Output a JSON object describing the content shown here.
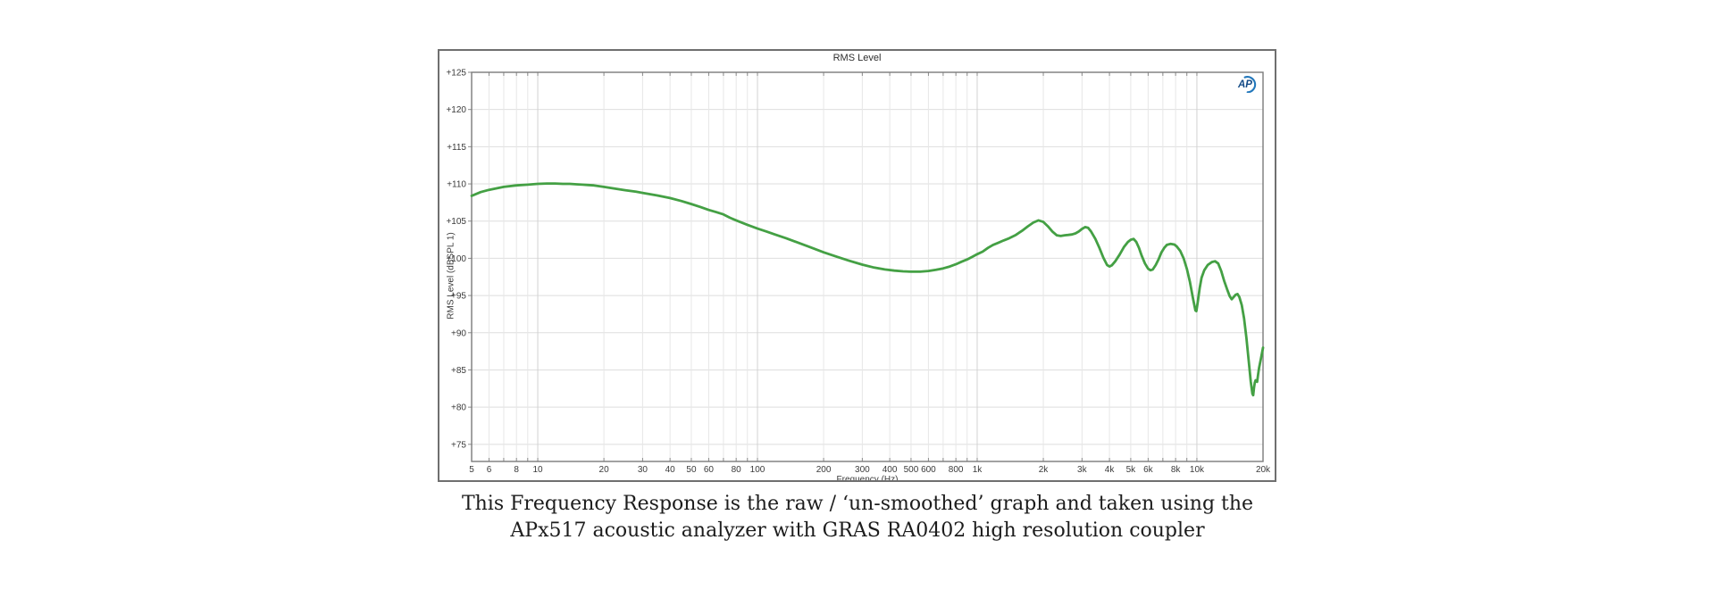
{
  "chart": {
    "title": "RMS Level",
    "y_axis_title": "RMS Level (dBSPL 1)",
    "x_axis_title": "Frequency (Hz)",
    "logo_text": "AP",
    "colors": {
      "trace": "#44a044",
      "grid_minor": "#e7e7e7",
      "grid_decade": "#d2d2d2",
      "grid_horizontal": "#dedede",
      "plot_border": "#7a7a7a",
      "outer_border": "#6f6f6f",
      "tick_text": "#3a3a3a",
      "tick_mark": "#8a8a8a",
      "logo_blue": "#2277bb",
      "logo_text_blue": "#134a86"
    }
  },
  "chart_data": {
    "type": "line",
    "title": "RMS Level",
    "xlabel": "Frequency (Hz)",
    "ylabel": "RMS Level (dBSPL 1)",
    "x_scale": "log",
    "xlim": [
      5,
      20000
    ],
    "ylim": [
      72.7,
      125
    ],
    "grid": true,
    "y_ticks": [
      125,
      120,
      115,
      110,
      105,
      100,
      95,
      90,
      85,
      80,
      75
    ],
    "y_tick_labels": [
      "+125",
      "+120",
      "+115",
      "+110",
      "+105",
      "+100",
      "+95",
      "+90",
      "+85",
      "+80",
      "+75"
    ],
    "x_gridlines": [
      6,
      7,
      8,
      9,
      10,
      20,
      30,
      40,
      50,
      60,
      70,
      80,
      90,
      100,
      200,
      300,
      400,
      500,
      600,
      700,
      800,
      900,
      1000,
      2000,
      3000,
      4000,
      5000,
      6000,
      7000,
      8000,
      9000,
      10000,
      20000
    ],
    "x_decades": [
      10,
      100,
      1000,
      10000
    ],
    "x_ticks": [
      {
        "f": 5,
        "label": "5"
      },
      {
        "f": 6,
        "label": "6"
      },
      {
        "f": 8,
        "label": "8"
      },
      {
        "f": 10,
        "label": "10"
      },
      {
        "f": 20,
        "label": "20"
      },
      {
        "f": 30,
        "label": "30"
      },
      {
        "f": 40,
        "label": "40"
      },
      {
        "f": 50,
        "label": "50"
      },
      {
        "f": 60,
        "label": "60"
      },
      {
        "f": 80,
        "label": "80"
      },
      {
        "f": 100,
        "label": "100"
      },
      {
        "f": 200,
        "label": "200"
      },
      {
        "f": 300,
        "label": "300"
      },
      {
        "f": 400,
        "label": "400"
      },
      {
        "f": 500,
        "label": "500"
      },
      {
        "f": 600,
        "label": "600"
      },
      {
        "f": 800,
        "label": "800"
      },
      {
        "f": 1000,
        "label": "1k"
      },
      {
        "f": 2000,
        "label": "2k"
      },
      {
        "f": 3000,
        "label": "3k"
      },
      {
        "f": 4000,
        "label": "4k"
      },
      {
        "f": 5000,
        "label": "5k"
      },
      {
        "f": 6000,
        "label": "6k"
      },
      {
        "f": 8000,
        "label": "8k"
      },
      {
        "f": 10000,
        "label": "10k"
      },
      {
        "f": 20000,
        "label": "20k"
      }
    ],
    "series": [
      {
        "name": "RMS Level",
        "color": "#44a044",
        "points": [
          [
            5,
            108.4
          ],
          [
            5.5,
            108.9
          ],
          [
            6,
            109.2
          ],
          [
            7,
            109.6
          ],
          [
            8,
            109.8
          ],
          [
            9,
            109.9
          ],
          [
            10,
            110.0
          ],
          [
            11,
            110.05
          ],
          [
            12,
            110.05
          ],
          [
            13,
            110.0
          ],
          [
            14,
            110.0
          ],
          [
            15,
            109.95
          ],
          [
            16,
            109.9
          ],
          [
            17,
            109.85
          ],
          [
            18,
            109.8
          ],
          [
            20,
            109.6
          ],
          [
            22,
            109.4
          ],
          [
            25,
            109.15
          ],
          [
            28,
            108.95
          ],
          [
            30,
            108.8
          ],
          [
            35,
            108.45
          ],
          [
            40,
            108.1
          ],
          [
            45,
            107.7
          ],
          [
            50,
            107.3
          ],
          [
            55,
            106.9
          ],
          [
            60,
            106.5
          ],
          [
            65,
            106.2
          ],
          [
            70,
            105.9
          ],
          [
            75,
            105.45
          ],
          [
            80,
            105.1
          ],
          [
            90,
            104.5
          ],
          [
            100,
            104.0
          ],
          [
            110,
            103.6
          ],
          [
            120,
            103.2
          ],
          [
            135,
            102.7
          ],
          [
            150,
            102.2
          ],
          [
            170,
            101.6
          ],
          [
            200,
            100.8
          ],
          [
            230,
            100.2
          ],
          [
            260,
            99.7
          ],
          [
            300,
            99.15
          ],
          [
            340,
            98.75
          ],
          [
            380,
            98.5
          ],
          [
            420,
            98.35
          ],
          [
            460,
            98.25
          ],
          [
            500,
            98.2
          ],
          [
            550,
            98.2
          ],
          [
            600,
            98.3
          ],
          [
            650,
            98.45
          ],
          [
            700,
            98.65
          ],
          [
            750,
            98.9
          ],
          [
            800,
            99.2
          ],
          [
            850,
            99.55
          ],
          [
            900,
            99.85
          ],
          [
            950,
            100.2
          ],
          [
            1000,
            100.55
          ],
          [
            1060,
            100.9
          ],
          [
            1120,
            101.4
          ],
          [
            1180,
            101.8
          ],
          [
            1250,
            102.1
          ],
          [
            1320,
            102.4
          ],
          [
            1400,
            102.7
          ],
          [
            1500,
            103.15
          ],
          [
            1600,
            103.7
          ],
          [
            1700,
            104.3
          ],
          [
            1800,
            104.8
          ],
          [
            1900,
            105.1
          ],
          [
            2000,
            104.9
          ],
          [
            2100,
            104.3
          ],
          [
            2200,
            103.6
          ],
          [
            2300,
            103.1
          ],
          [
            2400,
            103.0
          ],
          [
            2500,
            103.1
          ],
          [
            2600,
            103.15
          ],
          [
            2700,
            103.2
          ],
          [
            2800,
            103.35
          ],
          [
            2900,
            103.6
          ],
          [
            3000,
            103.95
          ],
          [
            3100,
            104.2
          ],
          [
            3200,
            104.1
          ],
          [
            3300,
            103.6
          ],
          [
            3450,
            102.6
          ],
          [
            3600,
            101.4
          ],
          [
            3750,
            100.1
          ],
          [
            3900,
            99.1
          ],
          [
            4000,
            98.9
          ],
          [
            4100,
            99.05
          ],
          [
            4250,
            99.6
          ],
          [
            4450,
            100.5
          ],
          [
            4650,
            101.5
          ],
          [
            4850,
            102.2
          ],
          [
            5000,
            102.5
          ],
          [
            5150,
            102.6
          ],
          [
            5300,
            102.2
          ],
          [
            5450,
            101.4
          ],
          [
            5600,
            100.4
          ],
          [
            5800,
            99.3
          ],
          [
            6000,
            98.6
          ],
          [
            6150,
            98.4
          ],
          [
            6300,
            98.5
          ],
          [
            6500,
            99.1
          ],
          [
            6700,
            99.9
          ],
          [
            6900,
            100.8
          ],
          [
            7100,
            101.4
          ],
          [
            7300,
            101.8
          ],
          [
            7600,
            101.95
          ],
          [
            7900,
            101.85
          ],
          [
            8100,
            101.6
          ],
          [
            8400,
            101.0
          ],
          [
            8700,
            100.0
          ],
          [
            9000,
            98.6
          ],
          [
            9300,
            96.8
          ],
          [
            9600,
            94.6
          ],
          [
            9850,
            93.0
          ],
          [
            9950,
            92.9
          ],
          [
            10100,
            94.2
          ],
          [
            10300,
            96.0
          ],
          [
            10500,
            97.4
          ],
          [
            10800,
            98.4
          ],
          [
            11200,
            99.1
          ],
          [
            11700,
            99.5
          ],
          [
            12100,
            99.6
          ],
          [
            12500,
            99.3
          ],
          [
            12900,
            98.3
          ],
          [
            13300,
            97.0
          ],
          [
            13700,
            95.9
          ],
          [
            14100,
            94.9
          ],
          [
            14400,
            94.5
          ],
          [
            14700,
            94.8
          ],
          [
            15000,
            95.1
          ],
          [
            15300,
            95.2
          ],
          [
            15600,
            94.8
          ],
          [
            16000,
            93.7
          ],
          [
            16400,
            91.9
          ],
          [
            16800,
            89.3
          ],
          [
            17200,
            86.3
          ],
          [
            17600,
            83.4
          ],
          [
            17900,
            81.8
          ],
          [
            18050,
            81.6
          ],
          [
            18200,
            82.6
          ],
          [
            18350,
            83.3
          ],
          [
            18500,
            83.6
          ],
          [
            18650,
            83.5
          ],
          [
            18800,
            83.4
          ],
          [
            19000,
            84.4
          ],
          [
            19200,
            85.3
          ],
          [
            19500,
            86.3
          ],
          [
            19800,
            87.3
          ],
          [
            20000,
            88.0
          ]
        ]
      }
    ]
  },
  "caption": {
    "line1": "This Frequency Response is the raw / ‘un-smoothed’ graph and taken using the",
    "line2": "APx517 acoustic analyzer with GRAS RA0402 high resolution coupler"
  }
}
